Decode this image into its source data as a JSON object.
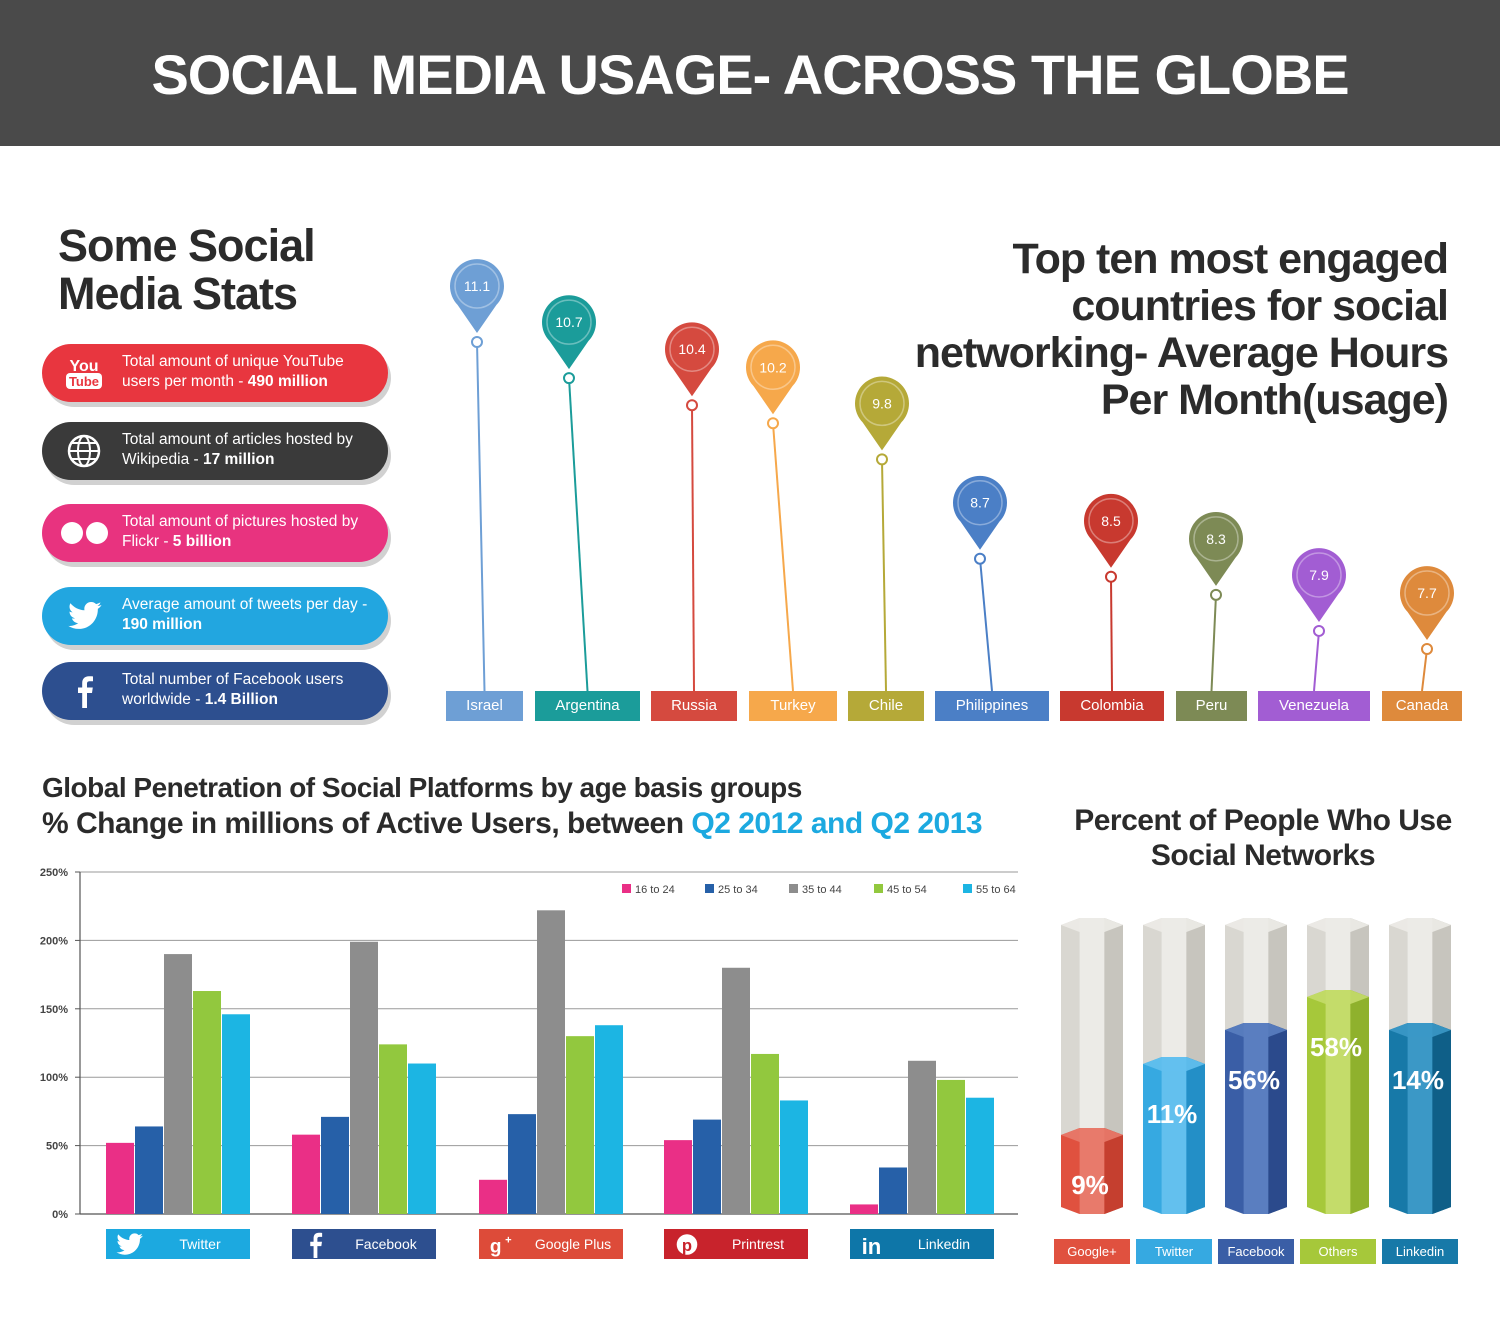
{
  "header": {
    "title": "SOCIAL MEDIA USAGE- ACROSS THE GLOBE"
  },
  "stats": {
    "heading": "Some Social Media Stats",
    "items": [
      {
        "icon": "youtube-icon",
        "icon_text_top": "You",
        "icon_text_bottom": "Tube",
        "text": "Total amount of unique YouTube users per month - ",
        "value": "490 million",
        "color": "#e8363f"
      },
      {
        "icon": "globe-icon",
        "text": "Total amount of articles hosted by Wikipedia - ",
        "value": "17 million",
        "color": "#3a3a3a"
      },
      {
        "icon": "flickr-icon",
        "text": "Total amount of pictures hosted by Flickr - ",
        "value": "5 billion",
        "color": "#e8337f"
      },
      {
        "icon": "twitter-icon",
        "text": "Average amount of tweets per day - ",
        "value": "190 million",
        "color": "#22a6e0"
      },
      {
        "icon": "facebook-icon",
        "text": "Total number of Facebook users worldwide - ",
        "value": "1.4 Billion",
        "color": "#2d4f8f"
      }
    ]
  },
  "chart_data": [
    {
      "type": "lollipop",
      "title": "Top ten most engaged countries for social networking- Average Hours Per Month(usage)",
      "categories": [
        "Israel",
        "Argentina",
        "Russia",
        "Turkey",
        "Chile",
        "Philippines",
        "Colombia",
        "Peru",
        "Venezuela",
        "Canada"
      ],
      "values": [
        11.1,
        10.7,
        10.4,
        10.2,
        9.8,
        8.7,
        8.5,
        8.3,
        7.9,
        7.7
      ],
      "colors": [
        "#6e9fd5",
        "#1b9c9a",
        "#d54a3f",
        "#f6a84b",
        "#b5a938",
        "#4b7fc6",
        "#c8392f",
        "#7d8a55",
        "#a25dd3",
        "#de8a3c"
      ]
    },
    {
      "type": "bar",
      "title": "Global Penetration of Social Platforms by age basis groups",
      "subtitle_prefix": "% Change in millions of Active Users, between ",
      "subtitle_highlight": "Q2 2012 and Q2 2013",
      "categories": [
        "Twitter",
        "Facebook",
        "Google Plus",
        "Printrest",
        "Linkedin"
      ],
      "category_icons": [
        "twitter-icon",
        "facebook-icon",
        "googleplus-icon",
        "pinterest-icon",
        "linkedin-icon"
      ],
      "category_colors": [
        "#1ca9e0",
        "#2d4f8f",
        "#dd4b39",
        "#c8232c",
        "#0e76a8"
      ],
      "yticks": [
        "0%",
        "50%",
        "100%",
        "150%",
        "200%",
        "250%"
      ],
      "ylim": [
        0,
        250
      ],
      "grid": true,
      "legend_position": "top-right",
      "series": [
        {
          "name": "16 to 24",
          "color": "#ea2f86",
          "values": [
            52,
            58,
            25,
            54,
            7
          ]
        },
        {
          "name": "25 to 34",
          "color": "#2660a8",
          "values": [
            64,
            71,
            73,
            69,
            34
          ]
        },
        {
          "name": "35 to 44",
          "color": "#8d8d8d",
          "values": [
            190,
            199,
            222,
            180,
            112
          ]
        },
        {
          "name": "45 to 54",
          "color": "#92c83e",
          "values": [
            163,
            124,
            130,
            117,
            98
          ]
        },
        {
          "name": "55 to 64",
          "color": "#1cb5e3",
          "values": [
            146,
            110,
            138,
            83,
            85
          ]
        }
      ]
    },
    {
      "type": "bar",
      "title": "Percent of People Who Use Social Networks",
      "categories": [
        "Google+",
        "Twitter",
        "Facebook",
        "Others",
        "Linkedin"
      ],
      "values": [
        9,
        11,
        56,
        58,
        14
      ],
      "labels": [
        "9%",
        "11%",
        "56%",
        "58%",
        "14%"
      ],
      "colors": [
        "#e0513f",
        "#36a9e1",
        "#3a5ea6",
        "#a6c83a",
        "#1779a8"
      ]
    }
  ]
}
